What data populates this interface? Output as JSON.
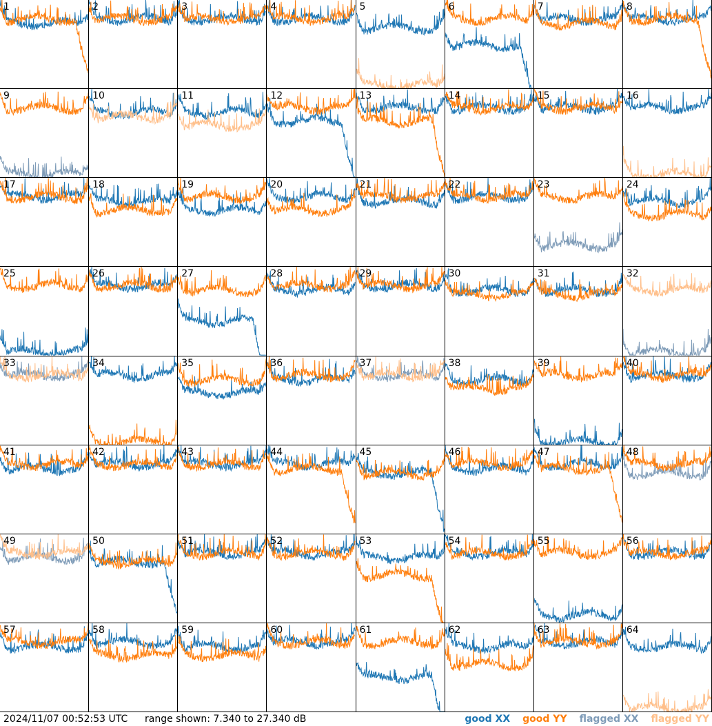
{
  "chart_data": {
    "type": "line",
    "title": "",
    "grid_rows": 8,
    "grid_cols": 8,
    "range_min_db": 7.34,
    "range_max_db": 27.34,
    "series_styles": {
      "good_xx": {
        "label": "good XX",
        "color": "#1f77b4"
      },
      "good_yy": {
        "label": "good YY",
        "color": "#ff7f0e"
      },
      "flagged_xx": {
        "label": "flagged XX",
        "color": "#7f9cb8"
      },
      "flagged_yy": {
        "label": "flagged YY",
        "color": "#ffbf8a"
      }
    },
    "panels": [
      {
        "id": "1",
        "xx": "good",
        "yy": "good",
        "xx_level": 22,
        "yy_level": 23,
        "yy_rolloff": true
      },
      {
        "id": "2",
        "xx": "good",
        "yy": "good",
        "xx_level": 23,
        "yy_level": 23
      },
      {
        "id": "3",
        "xx": "good",
        "yy": "good",
        "xx_level": 23,
        "yy_level": 23
      },
      {
        "id": "4",
        "xx": "good",
        "yy": "good",
        "xx_level": 23,
        "yy_level": 23
      },
      {
        "id": "5",
        "xx": "good",
        "yy": "flagged",
        "xx_level": 21,
        "yy_level": 8
      },
      {
        "id": "6",
        "xx": "good",
        "yy": "good",
        "xx_level": 17,
        "yy_level": 23,
        "xx_rolloff": true
      },
      {
        "id": "7",
        "xx": "good",
        "yy": "good",
        "xx_level": 23,
        "yy_level": 22
      },
      {
        "id": "8",
        "xx": "good",
        "yy": "good",
        "xx_level": 23,
        "yy_level": 23,
        "yy_rolloff": true
      },
      {
        "id": "9",
        "xx": "flagged",
        "yy": "good",
        "xx_level": 8,
        "yy_level": 23
      },
      {
        "id": "10",
        "xx": "good",
        "yy": "flagged",
        "xx_level": 22,
        "yy_level": 21
      },
      {
        "id": "11",
        "xx": "good",
        "yy": "flagged",
        "xx_level": 22,
        "yy_level": 19
      },
      {
        "id": "12",
        "xx": "good",
        "yy": "good",
        "xx_level": 20,
        "yy_level": 23,
        "xx_rolloff": true
      },
      {
        "id": "13",
        "xx": "good",
        "yy": "good",
        "xx_level": 23,
        "yy_level": 20,
        "yy_rolloff": true
      },
      {
        "id": "14",
        "xx": "good",
        "yy": "good",
        "xx_level": 23,
        "yy_level": 23
      },
      {
        "id": "15",
        "xx": "good",
        "yy": "good",
        "xx_level": 23,
        "yy_level": 23
      },
      {
        "id": "16",
        "xx": "good",
        "yy": "flagged",
        "xx_level": 23,
        "yy_level": 8
      },
      {
        "id": "17",
        "xx": "good",
        "yy": "good",
        "xx_level": 23,
        "yy_level": 23
      },
      {
        "id": "18",
        "xx": "good",
        "yy": "good",
        "xx_level": 22,
        "yy_level": 20
      },
      {
        "id": "19",
        "xx": "good",
        "yy": "good",
        "xx_level": 20,
        "yy_level": 23
      },
      {
        "id": "20",
        "xx": "good",
        "yy": "good",
        "xx_level": 23,
        "yy_level": 20
      },
      {
        "id": "21",
        "xx": "good",
        "yy": "good",
        "xx_level": 22,
        "yy_level": 23
      },
      {
        "id": "22",
        "xx": "good",
        "yy": "good",
        "xx_level": 23,
        "yy_level": 23
      },
      {
        "id": "23",
        "xx": "flagged",
        "yy": "good",
        "xx_level": 12,
        "yy_level": 23
      },
      {
        "id": "24",
        "xx": "good",
        "yy": "good",
        "xx_level": 22,
        "yy_level": 19
      },
      {
        "id": "25",
        "xx": "good",
        "yy": "good",
        "xx_level": 8,
        "yy_level": 23
      },
      {
        "id": "26",
        "xx": "good",
        "yy": "good",
        "xx_level": 23,
        "yy_level": 23
      },
      {
        "id": "27",
        "xx": "good",
        "yy": "good",
        "xx_level": 15,
        "yy_level": 22,
        "xx_rolloff": true
      },
      {
        "id": "28",
        "xx": "good",
        "yy": "good",
        "xx_level": 22,
        "yy_level": 23
      },
      {
        "id": "29",
        "xx": "good",
        "yy": "good",
        "xx_level": 23,
        "yy_level": 23
      },
      {
        "id": "30",
        "xx": "good",
        "yy": "good",
        "xx_level": 22,
        "yy_level": 21
      },
      {
        "id": "31",
        "xx": "good",
        "yy": "good",
        "xx_level": 22,
        "yy_level": 21
      },
      {
        "id": "32",
        "xx": "flagged",
        "yy": "flagged",
        "xx_level": 8,
        "yy_level": 22
      },
      {
        "id": "33",
        "xx": "flagged",
        "yy": "flagged",
        "xx_level": 23,
        "yy_level": 23
      },
      {
        "id": "34",
        "xx": "good",
        "yy": "good",
        "xx_level": 23,
        "yy_level": 8
      },
      {
        "id": "35",
        "xx": "good",
        "yy": "good",
        "xx_level": 19,
        "yy_level": 22
      },
      {
        "id": "36",
        "xx": "good",
        "yy": "good",
        "xx_level": 22,
        "yy_level": 23
      },
      {
        "id": "37",
        "xx": "flagged",
        "yy": "flagged",
        "xx_level": 23,
        "yy_level": 23
      },
      {
        "id": "38",
        "xx": "good",
        "yy": "good",
        "xx_level": 22,
        "yy_level": 20
      },
      {
        "id": "39",
        "xx": "good",
        "yy": "good",
        "xx_level": 8,
        "yy_level": 23
      },
      {
        "id": "40",
        "xx": "good",
        "yy": "good",
        "xx_level": 23,
        "yy_level": 23
      },
      {
        "id": "41",
        "xx": "good",
        "yy": "good",
        "xx_level": 22,
        "yy_level": 23
      },
      {
        "id": "42",
        "xx": "good",
        "yy": "good",
        "xx_level": 23,
        "yy_level": 23
      },
      {
        "id": "43",
        "xx": "good",
        "yy": "good",
        "xx_level": 23,
        "yy_level": 23
      },
      {
        "id": "44",
        "xx": "good",
        "yy": "good",
        "xx_level": 23,
        "yy_level": 22,
        "yy_rolloff": true
      },
      {
        "id": "45",
        "xx": "good",
        "yy": "good",
        "xx_level": 21,
        "yy_level": 21,
        "xx_rolloff": true
      },
      {
        "id": "46",
        "xx": "good",
        "yy": "good",
        "xx_level": 22,
        "yy_level": 23
      },
      {
        "id": "47",
        "xx": "good",
        "yy": "good",
        "xx_level": 23,
        "yy_level": 22,
        "yy_rolloff": true
      },
      {
        "id": "48",
        "xx": "flagged",
        "yy": "good",
        "xx_level": 21,
        "yy_level": 23
      },
      {
        "id": "49",
        "xx": "flagged",
        "yy": "flagged",
        "xx_level": 22,
        "yy_level": 23
      },
      {
        "id": "50",
        "xx": "good",
        "yy": "good",
        "xx_level": 21,
        "yy_level": 21,
        "xx_rolloff": true
      },
      {
        "id": "51",
        "xx": "good",
        "yy": "good",
        "xx_level": 23,
        "yy_level": 23
      },
      {
        "id": "52",
        "xx": "good",
        "yy": "good",
        "xx_level": 23,
        "yy_level": 23
      },
      {
        "id": "53",
        "xx": "good",
        "yy": "good",
        "xx_level": 22,
        "yy_level": 18,
        "yy_rolloff": true
      },
      {
        "id": "54",
        "xx": "good",
        "yy": "good",
        "xx_level": 23,
        "yy_level": 23
      },
      {
        "id": "55",
        "xx": "good",
        "yy": "good",
        "xx_level": 9,
        "yy_level": 23
      },
      {
        "id": "56",
        "xx": "good",
        "yy": "good",
        "xx_level": 23,
        "yy_level": 23
      },
      {
        "id": "57",
        "xx": "good",
        "yy": "good",
        "xx_level": 22,
        "yy_level": 23
      },
      {
        "id": "58",
        "xx": "good",
        "yy": "good",
        "xx_level": 23,
        "yy_level": 20
      },
      {
        "id": "59",
        "xx": "good",
        "yy": "good",
        "xx_level": 22,
        "yy_level": 20
      },
      {
        "id": "60",
        "xx": "good",
        "yy": "good",
        "xx_level": 23,
        "yy_level": 23
      },
      {
        "id": "61",
        "xx": "good",
        "yy": "good",
        "xx_level": 15,
        "yy_level": 23,
        "xx_rolloff": true
      },
      {
        "id": "62",
        "xx": "good",
        "yy": "good",
        "xx_level": 22,
        "yy_level": 18
      },
      {
        "id": "63",
        "xx": "good",
        "yy": "good",
        "xx_level": 23,
        "yy_level": 23
      },
      {
        "id": "64",
        "xx": "good",
        "yy": "flagged",
        "xx_level": 22,
        "yy_level": 8
      }
    ]
  },
  "footer": {
    "timestamp": "2024/11/07 00:52:53 UTC",
    "range_text": "range shown: 7.340 to 27.340 dB"
  },
  "legend": [
    {
      "label": "good XX",
      "color": "#1f77b4"
    },
    {
      "label": "good YY",
      "color": "#ff7f0e"
    },
    {
      "label": "flagged XX",
      "color": "#7f9cb8"
    },
    {
      "label": "flagged YY",
      "color": "#ffbf8a"
    }
  ]
}
